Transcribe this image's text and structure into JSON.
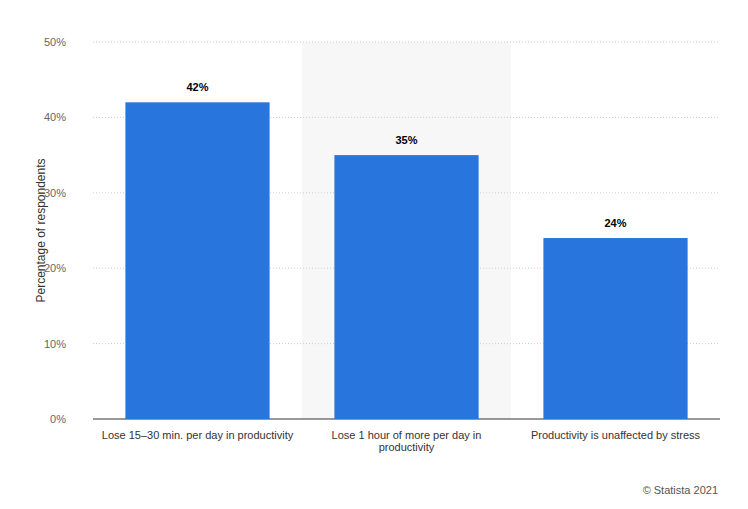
{
  "chart_data": {
    "type": "bar",
    "y_label": "Percentage of respondents",
    "categories": [
      "Lose 15–30 min. per day in productivity",
      "Lose 1 hour of more per day in productivity",
      "Productivity is unaffected by stress"
    ],
    "values": [
      42,
      35,
      24
    ],
    "value_labels": [
      "42%",
      "35%",
      "24%"
    ],
    "color": "#2876dd",
    "ylim": [
      0,
      50
    ],
    "yticks": [
      {
        "value": 0,
        "label": "0%"
      },
      {
        "value": 10,
        "label": "10%"
      },
      {
        "value": 20,
        "label": "20%"
      },
      {
        "value": 30,
        "label": "30%"
      },
      {
        "value": 40,
        "label": "40%"
      },
      {
        "value": 50,
        "label": "50%"
      }
    ],
    "grid": true,
    "data_labels": true,
    "source": "© Statista 2021"
  }
}
